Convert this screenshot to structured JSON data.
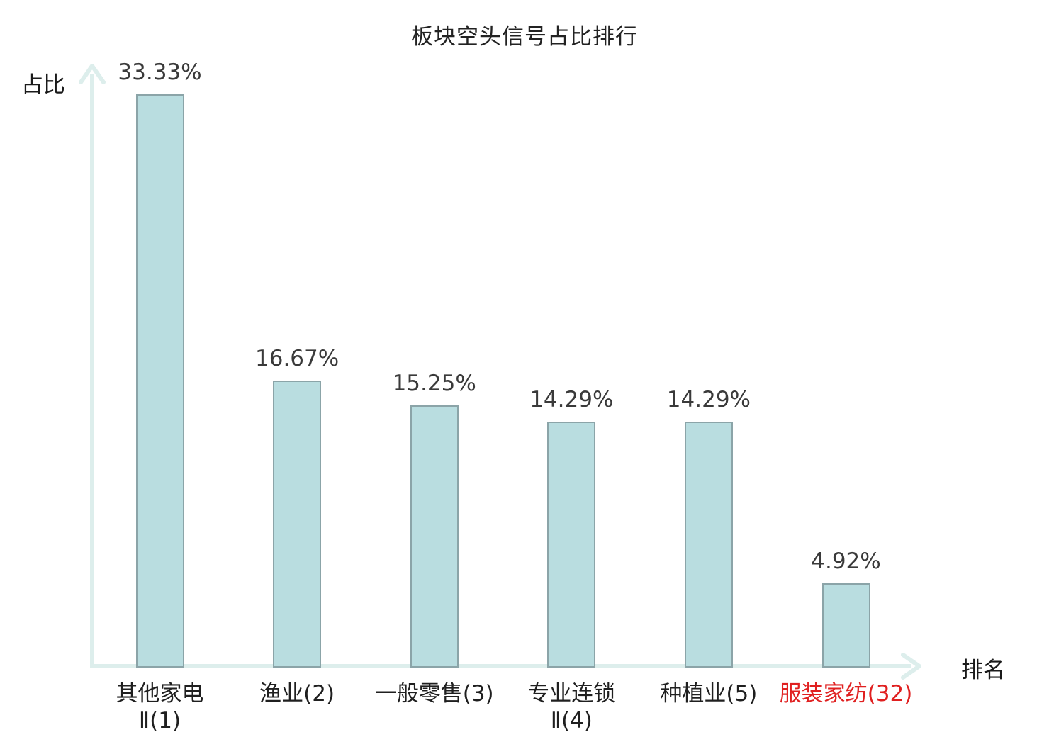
{
  "chart_data": {
    "type": "bar",
    "title": "板块空头信号占比排行",
    "xlabel": "排名",
    "ylabel": "占比",
    "categories": [
      "其他家电Ⅱ(1)",
      "渔业(2)",
      "一般零售(3)",
      "专业连锁Ⅱ(4)",
      "种植业(5)",
      "服装家纺(32)"
    ],
    "category_lines": [
      [
        "其他家电",
        "Ⅱ(1)"
      ],
      [
        "渔业(2)"
      ],
      [
        "一般零售(3)"
      ],
      [
        "专业连锁",
        "Ⅱ(4)"
      ],
      [
        "种植业(5)"
      ],
      [
        "服装家纺(32)"
      ]
    ],
    "values": [
      33.33,
      16.67,
      15.25,
      14.29,
      14.29,
      4.92
    ],
    "value_labels": [
      "33.33%",
      "16.67%",
      "15.25%",
      "14.29%",
      "14.29%",
      "4.92%"
    ],
    "ranks": [
      1,
      2,
      3,
      4,
      5,
      32
    ],
    "highlight_index": 5,
    "ylim": [
      0,
      35
    ],
    "grid": false,
    "legend": null,
    "colors": {
      "bar_fill": "#b9dde0",
      "bar_border": "#8ba4a8",
      "axis": "#ddeeec",
      "value_text": "#3a3a3a",
      "category_text": "#1f1f1f",
      "highlight_text": "#e02020",
      "title_text": "#222222"
    }
  }
}
